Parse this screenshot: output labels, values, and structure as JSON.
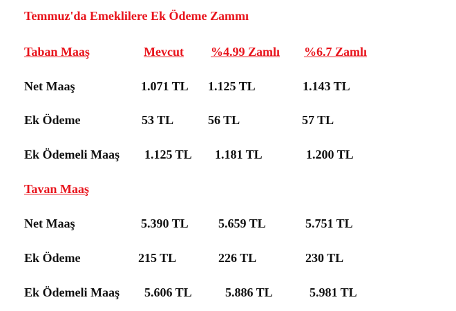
{
  "title": "Temmuz'da Emeklilere Ek Ödeme Zammı",
  "tables": [
    {
      "header": [
        "Taban Maaş",
        "Mevcut",
        "%4.99 Zamlı",
        "%6.7 Zamlı"
      ],
      "rows": [
        [
          "Net Maaş",
          "1.071 TL",
          "1.125 TL",
          "1.143 TL"
        ],
        [
          "Ek Ödeme",
          "53 TL",
          "56 TL",
          "57 TL"
        ],
        [
          "Ek Ödemeli Maaş",
          "1.125 TL",
          "1.181 TL",
          "1.200 TL"
        ]
      ]
    },
    {
      "header": [
        "Tavan Maaş"
      ],
      "rows": [
        [
          "Net Maaş",
          "5.390 TL",
          "5.659 TL",
          "5.751 TL"
        ],
        [
          "Ek Ödeme",
          "215 TL",
          "226 TL",
          "230 TL"
        ],
        [
          "Ek Ödemeli Maaş",
          "5.606 TL",
          "5.886 TL",
          "5.981 TL"
        ]
      ]
    }
  ]
}
